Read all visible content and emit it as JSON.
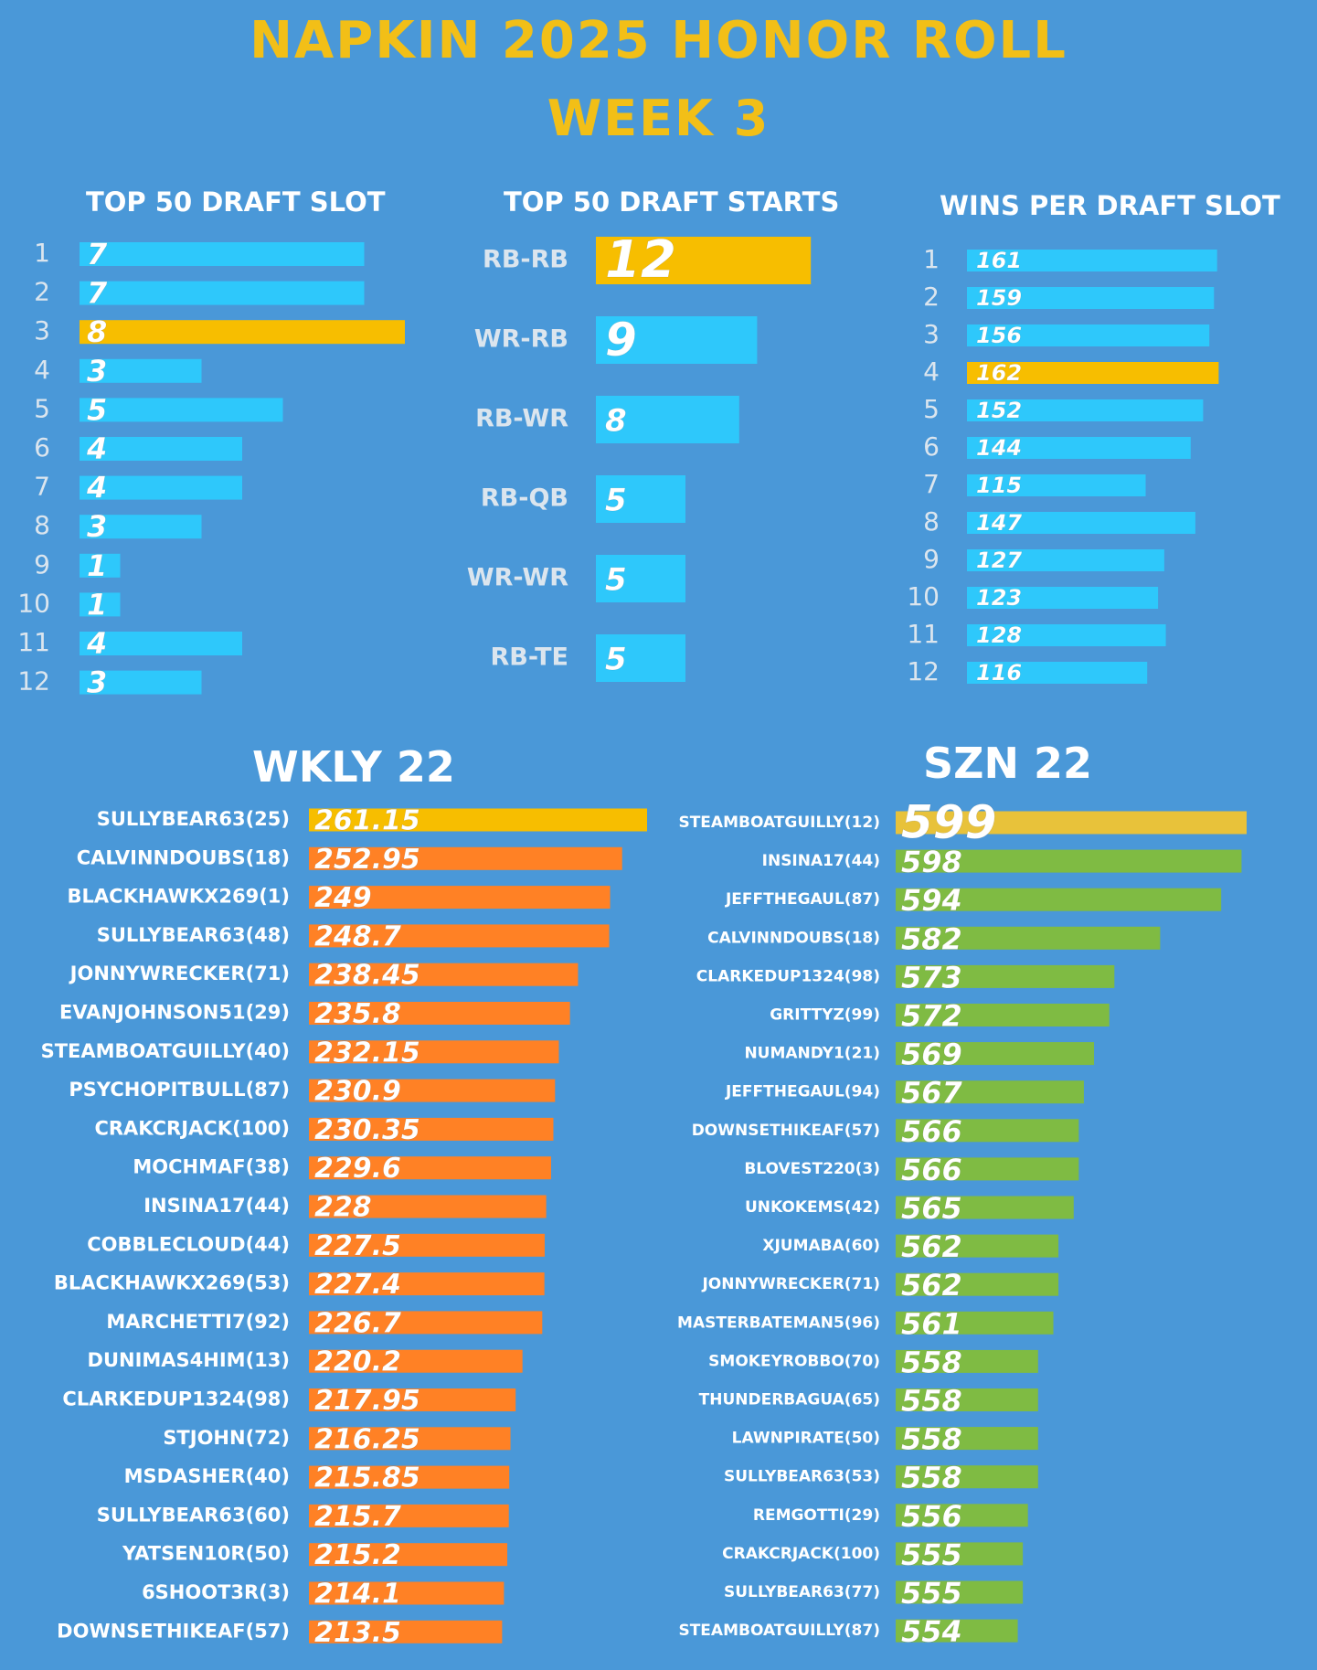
{
  "header": {
    "title": "NAPKIN 2025 HONOR ROLL",
    "subtitle": "WEEK 3"
  },
  "colors": {
    "background": "#4a98d8",
    "blue_bar": "#2ec8fb",
    "highlight": "#f7be00",
    "orange": "#ff8125",
    "green": "#7fbb43",
    "title_gold": "#f2bf17",
    "label_gray": "#dbe5ee"
  },
  "chart_data": [
    {
      "id": "top50_slot",
      "type": "bar",
      "title": "TOP 50 DRAFT SLOT",
      "categories": [
        "1",
        "2",
        "3",
        "4",
        "5",
        "6",
        "7",
        "8",
        "9",
        "10",
        "11",
        "12"
      ],
      "values": [
        7,
        7,
        8,
        3,
        5,
        4,
        4,
        3,
        1,
        1,
        4,
        3
      ],
      "highlight_index": 2,
      "orientation": "horizontal"
    },
    {
      "id": "top50_starts",
      "type": "bar",
      "title": "TOP 50 DRAFT STARTS",
      "categories": [
        "RB-RB",
        "WR-RB",
        "RB-WR",
        "RB-QB",
        "WR-WR",
        "RB-TE"
      ],
      "values": [
        12,
        9,
        8,
        5,
        5,
        5
      ],
      "highlight_index": 0,
      "orientation": "horizontal"
    },
    {
      "id": "wins_per_slot",
      "type": "bar",
      "title": "WINS PER DRAFT SLOT",
      "categories": [
        "1",
        "2",
        "3",
        "4",
        "5",
        "6",
        "7",
        "8",
        "9",
        "10",
        "11",
        "12"
      ],
      "values": [
        161,
        159,
        156,
        162,
        152,
        144,
        115,
        147,
        127,
        123,
        128,
        116
      ],
      "highlight_index": 3,
      "orientation": "horizontal"
    },
    {
      "id": "wkly22",
      "type": "bar",
      "title": "WKLY 22",
      "categories": [
        "SULLYBEAR63(25)",
        "CALVINNDOUBS(18)",
        "BLACKHAWKX269(1)",
        "SULLYBEAR63(48)",
        "JONNYWRECKER(71)",
        "EVANJOHNSON51(29)",
        "STEAMBOATGUILLY(40)",
        "PSYCHOPITBULL(87)",
        "CRAKCRJACK(100)",
        "MOCHMAF(38)",
        "INSINA17(44)",
        "COBBLECLOUD(44)",
        "BLACKHAWKX269(53)",
        "MARCHETTI7(92)",
        "DUNIMAS4HIM(13)",
        "CLARKEDUP1324(98)",
        "STJOHN(72)",
        "MSDASHER(40)",
        "SULLYBEAR63(60)",
        "YATSEN10R(50)",
        "6SHOOT3R(3)",
        "DOWNSETHIKEAF(57)"
      ],
      "values": [
        261.15,
        252.95,
        249,
        248.7,
        238.45,
        235.8,
        232.15,
        230.9,
        230.35,
        229.6,
        228,
        227.5,
        227.4,
        226.7,
        220.2,
        217.95,
        216.25,
        215.85,
        215.7,
        215.2,
        214.1,
        213.5
      ],
      "highlight_index": 0,
      "orientation": "horizontal"
    },
    {
      "id": "szn22",
      "type": "bar",
      "title": "SZN 22",
      "categories": [
        "STEAMBOATGUILLY(12)",
        "INSINA17(44)",
        "JEFFTHEGAUL(87)",
        "CALVINNDOUBS(18)",
        "CLARKEDUP1324(98)",
        "GRITTYZ(99)",
        "NUMANDY1(21)",
        "JEFFTHEGAUL(94)",
        "DOWNSETHIKEAF(57)",
        "BLOVEST220(3)",
        "UNKOKEMS(42)",
        "XJUMABA(60)",
        "JONNYWRECKER(71)",
        "MASTERBATEMAN5(96)",
        "SMOKEYROBBO(70)",
        "THUNDERBAGUA(65)",
        "LAWNPIRATE(50)",
        "SULLYBEAR63(53)",
        "REMGOTTI(29)",
        "CRAKCRJACK(100)",
        "SULLYBEAR63(77)",
        "STEAMBOATGUILLY(87)"
      ],
      "values": [
        599,
        598,
        594,
        582,
        573,
        572,
        569,
        567,
        566,
        566,
        565,
        562,
        562,
        561,
        558,
        558,
        558,
        558,
        556,
        555,
        555,
        554
      ],
      "highlight_index": 0,
      "orientation": "horizontal"
    }
  ]
}
